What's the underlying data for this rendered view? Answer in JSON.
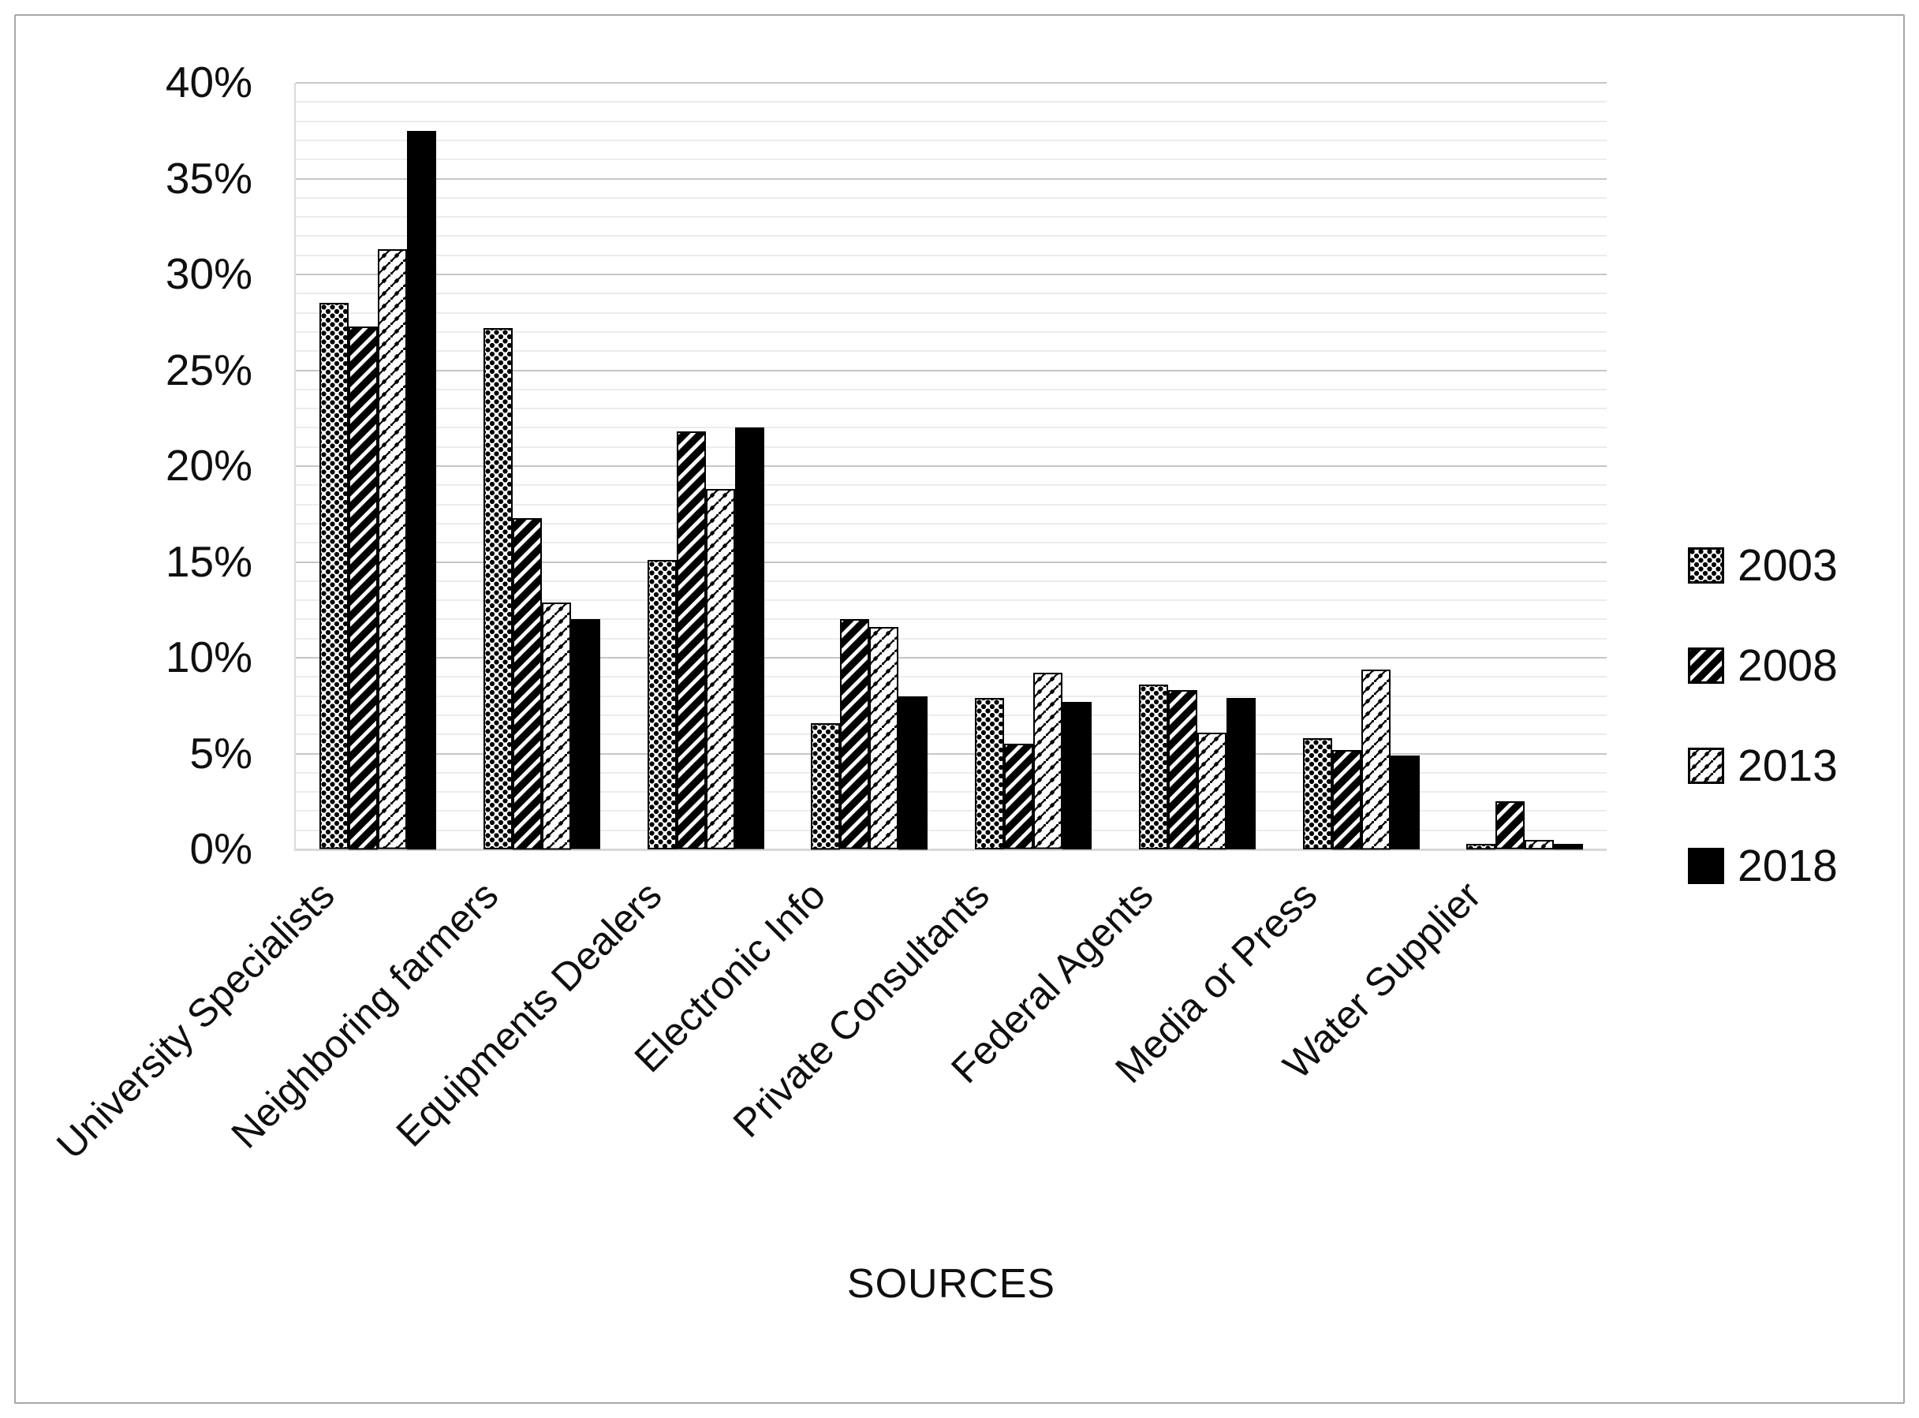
{
  "frame": {
    "border_color": "#a7a7a7"
  },
  "chart_data": {
    "type": "bar",
    "title": "",
    "xlabel": "SOURCES",
    "ylabel": "",
    "ylim": [
      0,
      40
    ],
    "y_major_step": 5,
    "y_minor_step": 1,
    "y_tick_labels": [
      "0%",
      "5%",
      "10%",
      "15%",
      "20%",
      "25%",
      "30%",
      "35%",
      "40%"
    ],
    "grid": "horizontal major and minor gridlines",
    "legend_position": "right",
    "categories": [
      "University Specialists",
      "Neighboring farmers",
      "Equipments Dealers",
      "Electronic Info",
      "Private Consultants",
      "Federal Agents",
      "Media or Press",
      "Water Supplier"
    ],
    "series": [
      {
        "name": "2003",
        "pattern": "dotted-diamond-lattice",
        "values": [
          28.5,
          27.2,
          15.1,
          6.6,
          7.9,
          8.6,
          5.8,
          0.3
        ]
      },
      {
        "name": "2008",
        "pattern": "wide-upward-diagonal-stripes",
        "values": [
          27.3,
          17.3,
          21.8,
          12.0,
          5.5,
          8.3,
          5.2,
          2.5
        ]
      },
      {
        "name": "2013",
        "pattern": "diagonal-shingle-scale",
        "values": [
          31.3,
          12.9,
          18.8,
          11.6,
          9.2,
          6.1,
          9.4,
          0.5
        ]
      },
      {
        "name": "2018",
        "pattern": "solid-black",
        "values": [
          37.5,
          12.0,
          22.0,
          8.0,
          7.7,
          7.9,
          4.9,
          0.3
        ]
      }
    ],
    "colors": {
      "bar_outline": "#000000",
      "pattern_ink": "#000000",
      "minor_grid": "#ececec",
      "major_grid": "#c6c6c6",
      "baseline": "#d8d8d8",
      "text": "#0f0f0f"
    }
  }
}
